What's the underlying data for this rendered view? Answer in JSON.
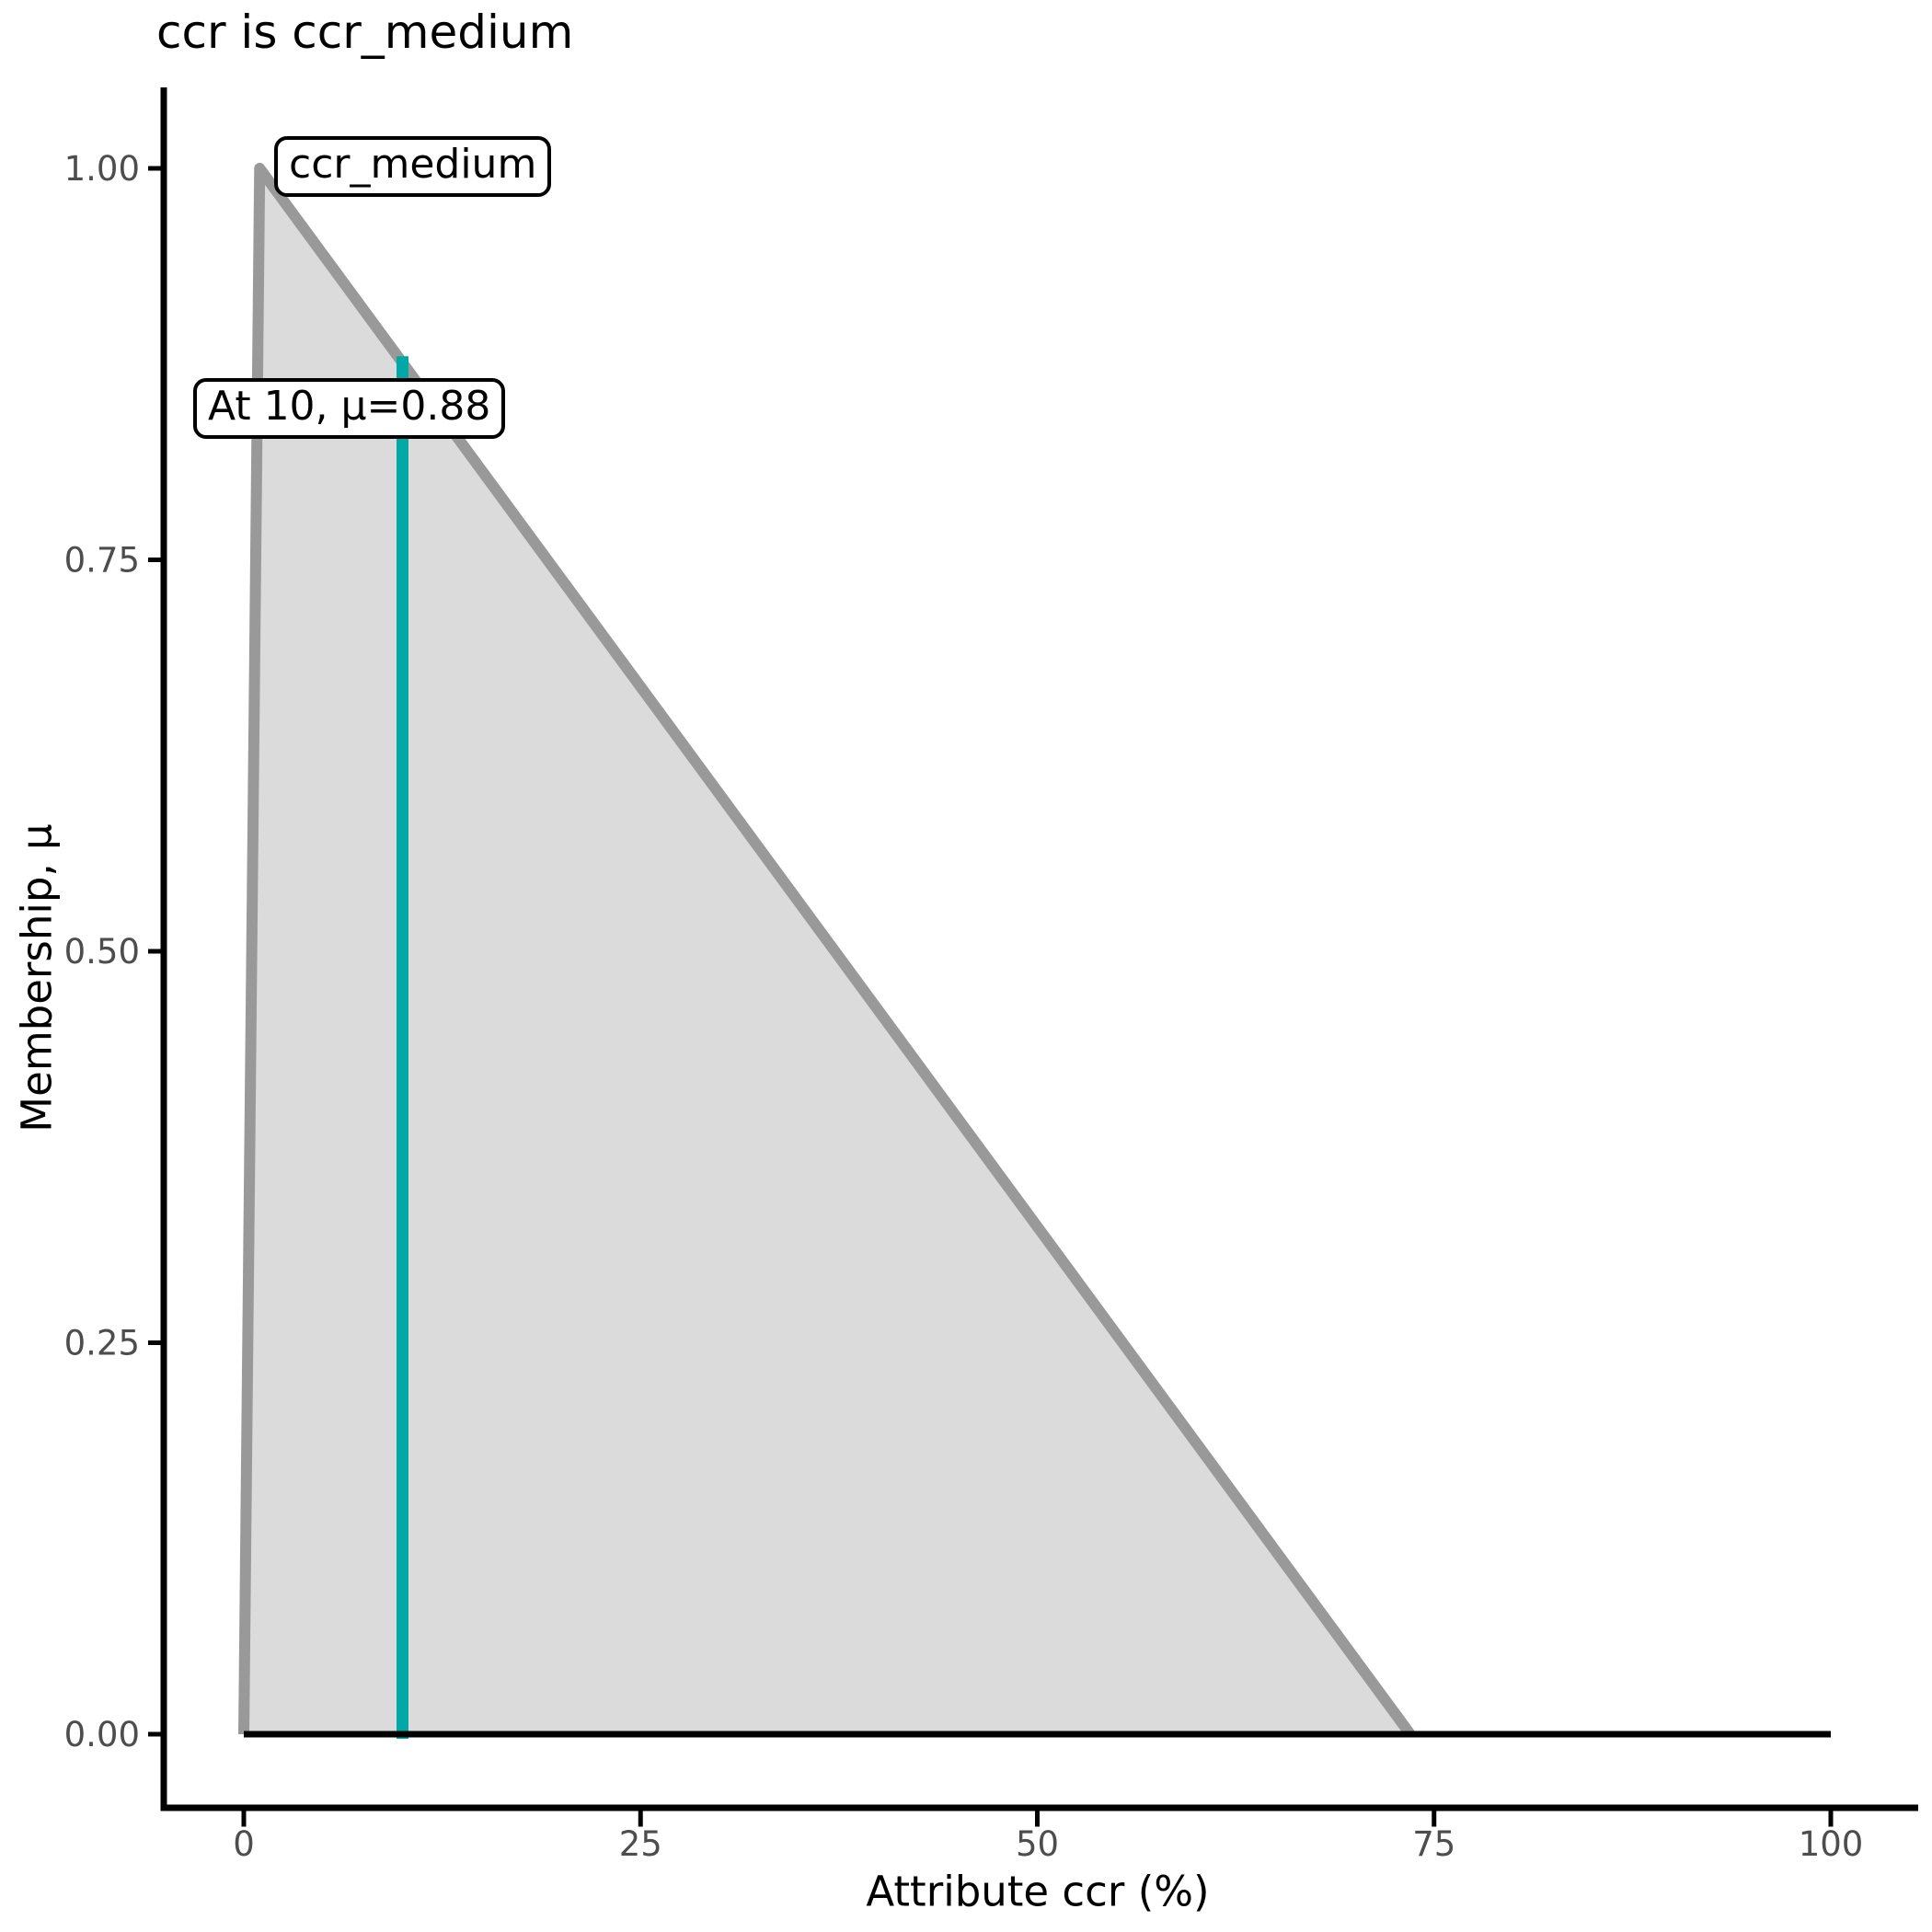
{
  "chart_data": {
    "type": "area",
    "title": "ccr is ccr_medium",
    "xlabel": "Attribute ccr (%)",
    "ylabel": "Membership, μ",
    "xlim": [
      0,
      100
    ],
    "ylim": [
      0,
      1
    ],
    "grid": false,
    "legend": "none",
    "xticks": {
      "values": [
        0,
        25,
        50,
        75,
        100
      ],
      "labels": [
        "0",
        "25",
        "50",
        "75",
        "100"
      ]
    },
    "yticks": {
      "values": [
        0,
        0.25,
        0.5,
        0.75,
        1.0
      ],
      "labels": [
        "0.00",
        "0.25",
        "0.50",
        "0.75",
        "1.00"
      ]
    },
    "series": [
      {
        "name": "ccr_medium membership function",
        "type": "area",
        "points": [
          [
            0,
            0
          ],
          [
            1,
            1
          ],
          [
            73.5,
            0
          ]
        ],
        "fill": "#DBDBDB",
        "stroke": "#999999",
        "stroke_width": 12
      },
      {
        "name": "zero membership baseline",
        "type": "line",
        "points": [
          [
            0,
            0
          ],
          [
            100,
            0
          ]
        ],
        "stroke": "#000000",
        "stroke_width": 7
      }
    ],
    "marker_line": {
      "x": 10,
      "mu": 0.88,
      "color": "#00A9A6",
      "width": 13
    },
    "annotations": [
      {
        "id": "set-label",
        "text": "ccr_medium"
      },
      {
        "id": "value-label",
        "text": "At 10, μ=0.88"
      }
    ],
    "colors": {
      "axis": "#000000",
      "tick_label": "#4D4D4D",
      "background": "#FFFFFF"
    }
  }
}
